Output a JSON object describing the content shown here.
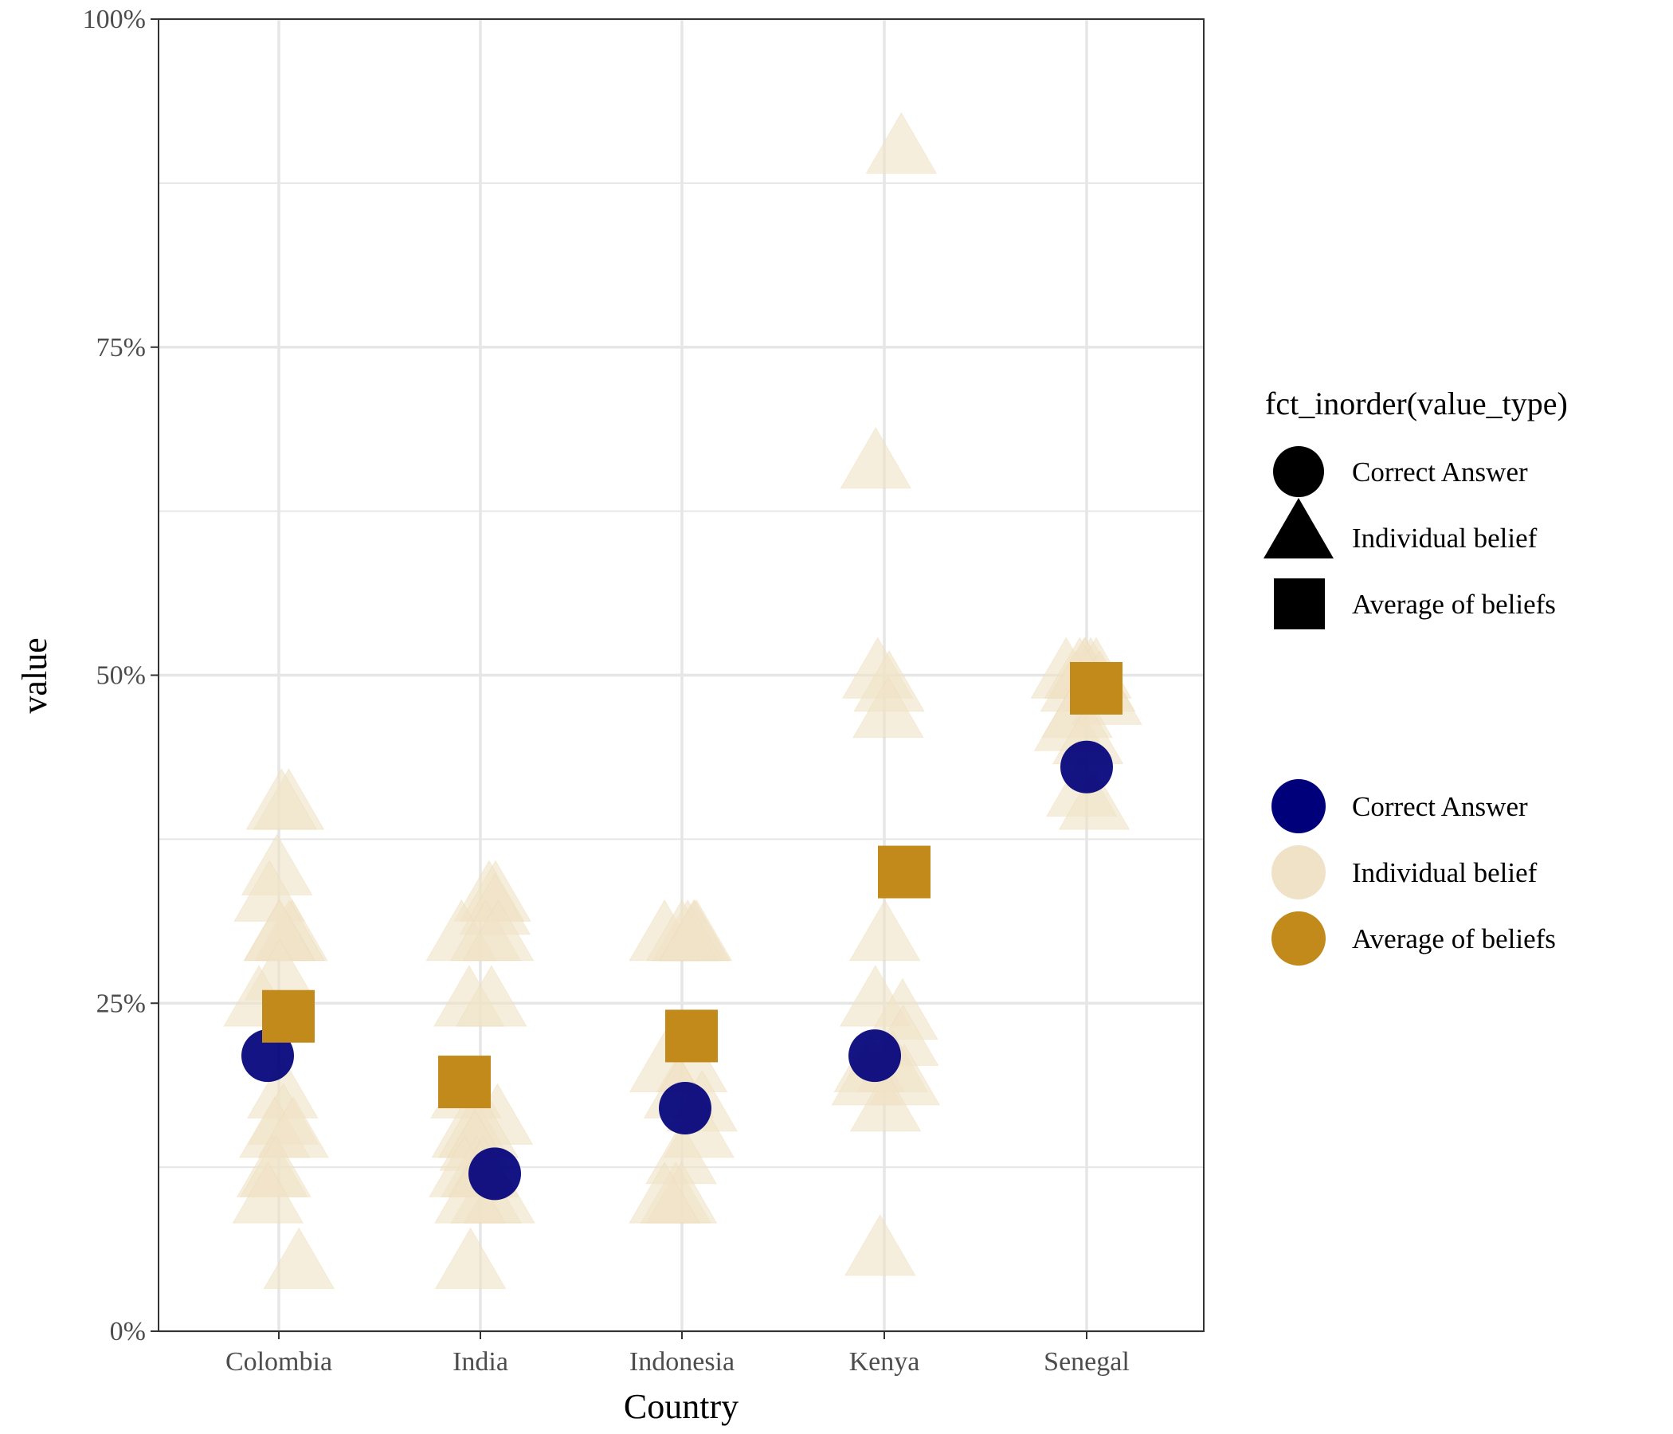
{
  "chart_data": {
    "type": "scatter",
    "title": "",
    "xlabel": "Country",
    "ylabel": "value",
    "categories": [
      "Colombia",
      "India",
      "Indonesia",
      "Kenya",
      "Senegal"
    ],
    "ylim": [
      0,
      100
    ],
    "y_ticks": [
      "0%",
      "25%",
      "50%",
      "75%",
      "100%"
    ],
    "grid": true,
    "colors": {
      "correct": "#00007a",
      "individual": "#f0e2c7",
      "average": "#c28a1b",
      "grid": "#e6e6e6",
      "axis": "#333333"
    },
    "legend": {
      "position": "right",
      "shape_title": "fct_inorder(value_type)",
      "shape_entries": [
        {
          "label": "Correct Answer",
          "shape": "circle"
        },
        {
          "label": "Individual belief",
          "shape": "triangle"
        },
        {
          "label": "Average of beliefs",
          "shape": "square"
        }
      ],
      "color_entries": [
        {
          "label": "Correct Answer",
          "color": "#00007a"
        },
        {
          "label": "Individual belief",
          "color": "#f0e2c7"
        },
        {
          "label": "Average of beliefs",
          "color": "#c28a1b"
        }
      ]
    },
    "series": [
      {
        "name": "Correct Answer",
        "shape": "circle",
        "points": [
          {
            "x": "Colombia",
            "y": 21
          },
          {
            "x": "India",
            "y": 12
          },
          {
            "x": "Indonesia",
            "y": 17
          },
          {
            "x": "Kenya",
            "y": 21
          },
          {
            "x": "Senegal",
            "y": 43
          }
        ]
      },
      {
        "name": "Individual belief",
        "shape": "triangle",
        "points": [
          {
            "x": "Colombia",
            "y": 40
          },
          {
            "x": "Colombia",
            "y": 40
          },
          {
            "x": "Colombia",
            "y": 35
          },
          {
            "x": "Colombia",
            "y": 33
          },
          {
            "x": "Colombia",
            "y": 30
          },
          {
            "x": "Colombia",
            "y": 30
          },
          {
            "x": "Colombia",
            "y": 30
          },
          {
            "x": "Colombia",
            "y": 30
          },
          {
            "x": "Colombia",
            "y": 27
          },
          {
            "x": "Colombia",
            "y": 25
          },
          {
            "x": "Colombia",
            "y": 18
          },
          {
            "x": "Colombia",
            "y": 16
          },
          {
            "x": "Colombia",
            "y": 15
          },
          {
            "x": "Colombia",
            "y": 15
          },
          {
            "x": "Colombia",
            "y": 12
          },
          {
            "x": "Colombia",
            "y": 12
          },
          {
            "x": "Colombia",
            "y": 10
          },
          {
            "x": "Colombia",
            "y": 5
          },
          {
            "x": "India",
            "y": 33
          },
          {
            "x": "India",
            "y": 33
          },
          {
            "x": "India",
            "y": 32
          },
          {
            "x": "India",
            "y": 30
          },
          {
            "x": "India",
            "y": 30
          },
          {
            "x": "India",
            "y": 30
          },
          {
            "x": "India",
            "y": 25
          },
          {
            "x": "India",
            "y": 25
          },
          {
            "x": "India",
            "y": 18
          },
          {
            "x": "India",
            "y": 16
          },
          {
            "x": "India",
            "y": 15
          },
          {
            "x": "India",
            "y": 15
          },
          {
            "x": "India",
            "y": 15
          },
          {
            "x": "India",
            "y": 14
          },
          {
            "x": "India",
            "y": 12
          },
          {
            "x": "India",
            "y": 12
          },
          {
            "x": "India",
            "y": 12
          },
          {
            "x": "India",
            "y": 10
          },
          {
            "x": "India",
            "y": 10
          },
          {
            "x": "India",
            "y": 10
          },
          {
            "x": "India",
            "y": 5
          },
          {
            "x": "Indonesia",
            "y": 30
          },
          {
            "x": "Indonesia",
            "y": 30
          },
          {
            "x": "Indonesia",
            "y": 30
          },
          {
            "x": "Indonesia",
            "y": 30
          },
          {
            "x": "Indonesia",
            "y": 30
          },
          {
            "x": "Indonesia",
            "y": 30
          },
          {
            "x": "Indonesia",
            "y": 20
          },
          {
            "x": "Indonesia",
            "y": 20
          },
          {
            "x": "Indonesia",
            "y": 18
          },
          {
            "x": "Indonesia",
            "y": 17
          },
          {
            "x": "Indonesia",
            "y": 15
          },
          {
            "x": "Indonesia",
            "y": 13
          },
          {
            "x": "Indonesia",
            "y": 10
          },
          {
            "x": "Indonesia",
            "y": 10
          },
          {
            "x": "Indonesia",
            "y": 10
          },
          {
            "x": "Kenya",
            "y": 90
          },
          {
            "x": "Kenya",
            "y": 66
          },
          {
            "x": "Kenya",
            "y": 50
          },
          {
            "x": "Kenya",
            "y": 49
          },
          {
            "x": "Kenya",
            "y": 47
          },
          {
            "x": "Kenya",
            "y": 30
          },
          {
            "x": "Kenya",
            "y": 25
          },
          {
            "x": "Kenya",
            "y": 24
          },
          {
            "x": "Kenya",
            "y": 22
          },
          {
            "x": "Kenya",
            "y": 20
          },
          {
            "x": "Kenya",
            "y": 20
          },
          {
            "x": "Kenya",
            "y": 19
          },
          {
            "x": "Kenya",
            "y": 19
          },
          {
            "x": "Kenya",
            "y": 17
          },
          {
            "x": "Kenya",
            "y": 6
          },
          {
            "x": "Senegal",
            "y": 50
          },
          {
            "x": "Senegal",
            "y": 50
          },
          {
            "x": "Senegal",
            "y": 50
          },
          {
            "x": "Senegal",
            "y": 50
          },
          {
            "x": "Senegal",
            "y": 50
          },
          {
            "x": "Senegal",
            "y": 50
          },
          {
            "x": "Senegal",
            "y": 49
          },
          {
            "x": "Senegal",
            "y": 49
          },
          {
            "x": "Senegal",
            "y": 48
          },
          {
            "x": "Senegal",
            "y": 47
          },
          {
            "x": "Senegal",
            "y": 46
          },
          {
            "x": "Senegal",
            "y": 45
          },
          {
            "x": "Senegal",
            "y": 41
          },
          {
            "x": "Senegal",
            "y": 40
          }
        ]
      },
      {
        "name": "Average of beliefs",
        "shape": "square",
        "points": [
          {
            "x": "Colombia",
            "y": 24
          },
          {
            "x": "India",
            "y": 19
          },
          {
            "x": "Indonesia",
            "y": 22.5
          },
          {
            "x": "Kenya",
            "y": 35
          },
          {
            "x": "Senegal",
            "y": 49
          }
        ]
      }
    ]
  }
}
